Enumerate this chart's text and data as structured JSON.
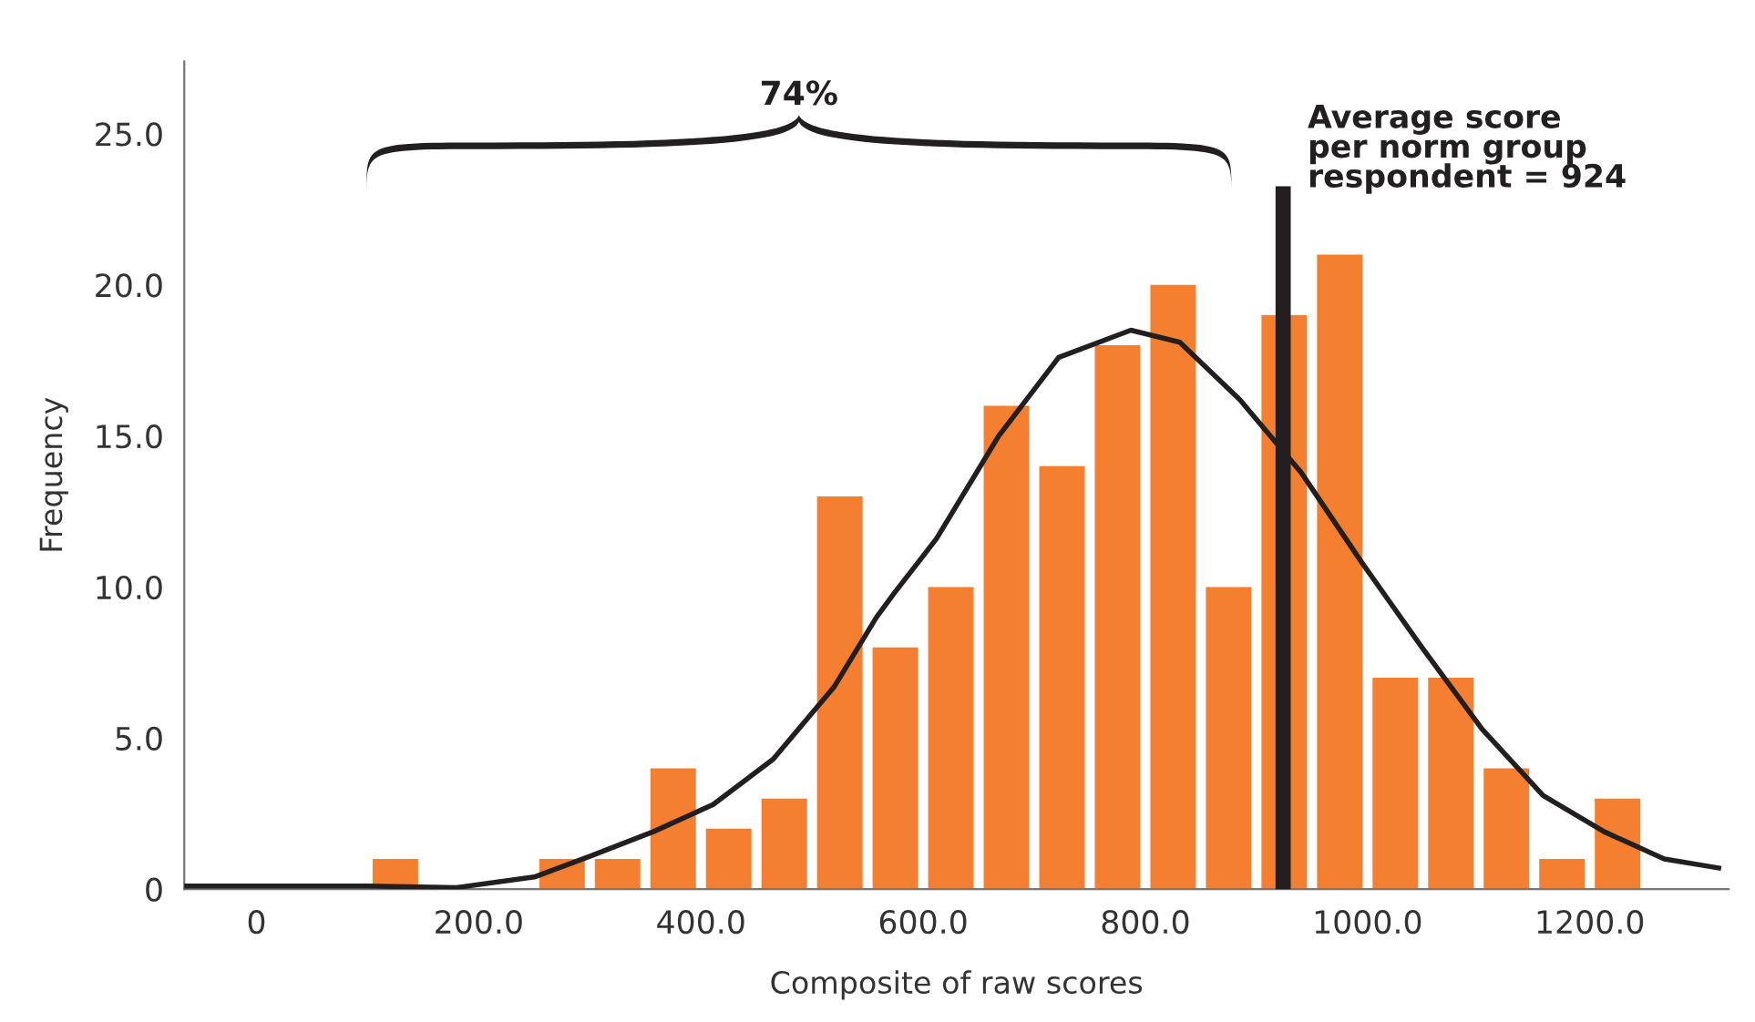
{
  "chart_data": {
    "type": "histogram",
    "xlabel": "Composite of raw scores",
    "ylabel": "Frequency",
    "bins": [
      100,
      150,
      200,
      250,
      300,
      350,
      400,
      450,
      500,
      550,
      600,
      650,
      700,
      750,
      800,
      850,
      900,
      950,
      1000,
      1050,
      1100,
      1150,
      1200,
      1250
    ],
    "values": [
      1,
      0,
      0,
      1,
      1,
      4,
      2,
      3,
      13,
      8,
      10,
      16,
      14,
      18,
      20,
      10,
      19,
      21,
      7,
      7,
      4,
      1,
      3
    ],
    "color": "#f47f30",
    "series": [
      {
        "type": "line",
        "color": "#231f20",
        "x": [
          -65,
          100,
          180,
          250,
          301,
          357,
          411,
          465,
          520,
          558,
          574,
          612,
          668,
          722,
          787,
          831,
          885,
          940,
          995,
          1049,
          1103,
          1158,
          1213,
          1267,
          1316
        ],
        "values": [
          0.1,
          0.1,
          0.05,
          0.4,
          1.1,
          1.9,
          2.8,
          4.3,
          6.7,
          9.0,
          9.8,
          11.6,
          15.0,
          17.6,
          18.5,
          18.1,
          16.2,
          13.8,
          10.8,
          8.0,
          5.3,
          3.1,
          1.9,
          1.0,
          0.7
        ]
      }
    ],
    "ref_lines": [
      {
        "axis": "x",
        "value": 924,
        "label": "Average score\nper norm group\nrespondent = 924",
        "color": "#231f20"
      }
    ],
    "annotations": [
      "74%"
    ],
    "xlim": [
      -65,
      1325
    ],
    "ylim": [
      0,
      27.4
    ],
    "xticks": [
      0,
      {
        "value": 200,
        "label": "200.0"
      },
      {
        "value": 400,
        "label": "400.0"
      },
      {
        "value": 600,
        "label": "600.0"
      },
      {
        "value": 800,
        "label": "800.0"
      },
      {
        "value": 1000,
        "label": "1000.0"
      },
      {
        "value": 1200,
        "label": "1200.0"
      }
    ],
    "yticks": [
      0,
      {
        "value": 5,
        "label": "5.0"
      },
      {
        "value": 10,
        "label": "10.0"
      },
      {
        "value": 15,
        "label": "15.0"
      },
      {
        "value": 20,
        "label": "20.0"
      },
      {
        "value": 25,
        "label": "25.0"
      }
    ],
    "grid": false
  }
}
